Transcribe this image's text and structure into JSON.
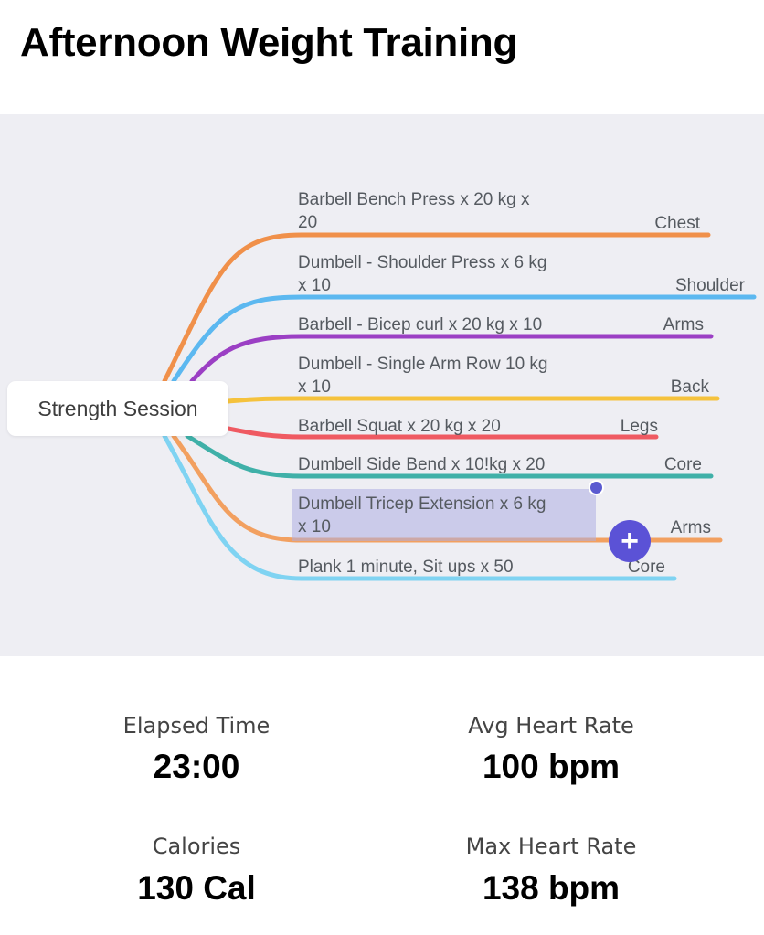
{
  "header": {
    "title": "Afternoon Weight Training"
  },
  "mindmap": {
    "root": "Strength Session",
    "branches": [
      {
        "text": "Barbell Bench Press x 20 kg x\n20",
        "tag": "Chest",
        "color": "#f0904a"
      },
      {
        "text": "Dumbell - Shoulder Press x 6 kg\nx 10",
        "tag": "Shoulder",
        "color": "#5cb8f0"
      },
      {
        "text": "Barbell - Bicep curl x 20 kg x 10",
        "tag": "Arms",
        "color": "#9b3fc4"
      },
      {
        "text": "Dumbell - Single Arm Row 10 kg\nx 10",
        "tag": "Back",
        "color": "#f5c23c"
      },
      {
        "text": "Barbell Squat  x 20 kg x 20",
        "tag": "Legs",
        "color": "#ef5a62"
      },
      {
        "text": "Dumbell Side Bend x 10!kg x 20",
        "tag": "Core",
        "color": "#3fb0a8"
      },
      {
        "text": "Dumbell Tricep Extension x 6 kg\nx 10",
        "tag": "Arms",
        "color": "#f2a060"
      },
      {
        "text": "Plank 1 minute, Sit ups x 50",
        "tag": "Core",
        "color": "#7fd3f2"
      }
    ],
    "add_button_icon": "plus-icon",
    "accent_color": "#5b52d6"
  },
  "stats": {
    "elapsed_time": {
      "label": "Elapsed Time",
      "value": "23:00"
    },
    "avg_heart_rate": {
      "label": "Avg Heart Rate",
      "value": "100 bpm"
    },
    "calories": {
      "label": "Calories",
      "value": "130 Cal"
    },
    "max_heart_rate": {
      "label": "Max Heart Rate",
      "value": "138 bpm"
    }
  }
}
